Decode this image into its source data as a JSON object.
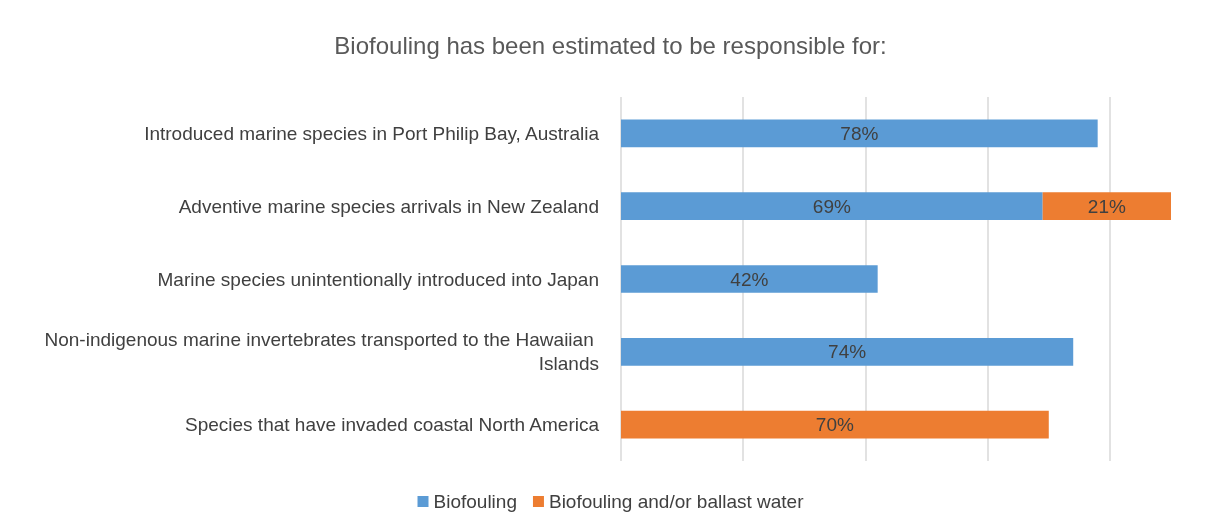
{
  "chart_data": {
    "type": "bar",
    "orientation": "horizontal",
    "stacked": true,
    "title": "Biofouling has been estimated to be responsible for:",
    "categories": [
      "Introduced marine species in Port Philip Bay, Australia",
      "Adventive marine species arrivals in New Zealand",
      "Marine species unintentionally introduced into Japan",
      "Non-indigenous marine invertebrates transported to the Hawaiian Islands",
      "Species that have invaded coastal North America"
    ],
    "series": [
      {
        "name": "Biofouling",
        "color": "#5b9bd5",
        "values": [
          78,
          69,
          42,
          74,
          null
        ],
        "value_labels": [
          "78%",
          "69%",
          "42%",
          "74%",
          null
        ]
      },
      {
        "name": "Biofouling and/or ballast water",
        "color": "#ed7d31",
        "values": [
          null,
          21,
          null,
          null,
          70
        ],
        "value_labels": [
          null,
          "21%",
          null,
          null,
          "70%"
        ]
      }
    ],
    "xlim": [
      0,
      90
    ],
    "xticks": [
      {
        "value": 0,
        "label": null
      },
      {
        "value": 20,
        "label": null
      },
      {
        "value": 40,
        "label": null
      },
      {
        "value": 60,
        "label": null
      },
      {
        "value": 80,
        "label": null
      }
    ],
    "tick_labels": "y",
    "grid": "x",
    "legend": "bottom"
  }
}
